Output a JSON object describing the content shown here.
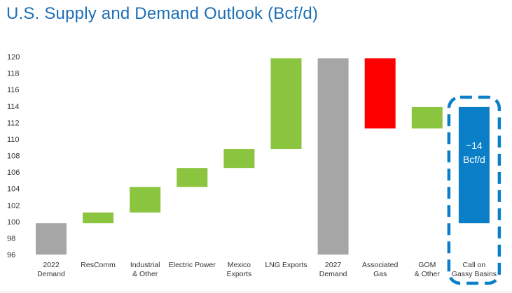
{
  "title": "U.S. Supply and Demand Outlook (Bcf/d)",
  "chart_data": {
    "type": "waterfall",
    "title": "U.S. Supply and Demand Outlook (Bcf/d)",
    "xlabel": "",
    "ylabel": "",
    "ylim": [
      96,
      120
    ],
    "yticks": [
      96,
      98,
      100,
      102,
      104,
      106,
      108,
      110,
      112,
      114,
      116,
      118,
      120
    ],
    "bars": [
      {
        "label": [
          "2022",
          "Demand"
        ],
        "start": 96,
        "end": 99.8,
        "color": "#a6a6a6"
      },
      {
        "label": [
          "ResComm"
        ],
        "start": 99.8,
        "end": 101.1,
        "color": "#8bc540"
      },
      {
        "label": [
          "Industrial",
          "& Other"
        ],
        "start": 101.1,
        "end": 104.2,
        "color": "#8bc540"
      },
      {
        "label": [
          "Electric Power"
        ],
        "start": 104.2,
        "end": 106.5,
        "color": "#8bc540"
      },
      {
        "label": [
          "Mexico",
          "Exports"
        ],
        "start": 106.5,
        "end": 108.8,
        "color": "#8bc540"
      },
      {
        "label": [
          "LNG Exports"
        ],
        "start": 108.8,
        "end": 119.8,
        "color": "#8bc540"
      },
      {
        "label": [
          "2027",
          "Demand"
        ],
        "start": 96,
        "end": 119.8,
        "color": "#a6a6a6"
      },
      {
        "label": [
          "Associated",
          "Gas"
        ],
        "start": 111.3,
        "end": 119.8,
        "color": "#ff0000"
      },
      {
        "label": [
          "GOM",
          "& Other"
        ],
        "start": 111.3,
        "end": 113.9,
        "color": "#8bc540"
      },
      {
        "label": [
          "Call on",
          "Gassy Basins"
        ],
        "start": 99.8,
        "end": 113.9,
        "color": "#0a7fc7"
      }
    ],
    "annotation": {
      "lines": [
        "~14",
        "Bcf/d"
      ],
      "bar_index": 9
    },
    "highlight": {
      "bar_index": 9,
      "style": "dashed",
      "color": "#0a7fc7"
    }
  }
}
